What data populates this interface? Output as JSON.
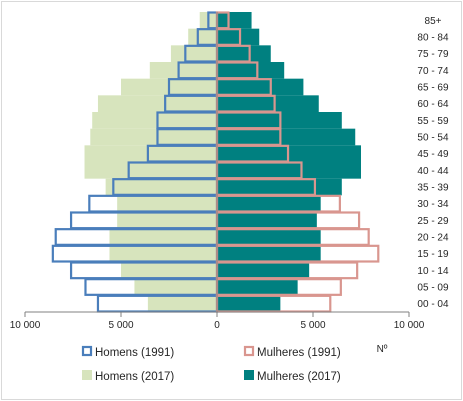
{
  "chart_data": {
    "type": "bar",
    "orientation": "horizontal",
    "title": "",
    "xlabel": "Nº",
    "ylabel": "",
    "categories": [
      "00 - 04",
      "05 - 09",
      "10 - 14",
      "15 - 19",
      "20 - 24",
      "25 - 29",
      "30 - 34",
      "35 - 39",
      "40 - 44",
      "45 - 49",
      "50 - 54",
      "55 - 59",
      "60 - 64",
      "65 - 69",
      "70 - 74",
      "75 - 79",
      "80 - 84",
      "85+"
    ],
    "xlim": [
      -10000,
      10000
    ],
    "x_ticks": [
      -10000,
      -5000,
      0,
      5000,
      10000
    ],
    "x_tick_labels": [
      "10 000",
      "5 000",
      "0",
      "5 000",
      "10 000"
    ],
    "series": [
      {
        "name": "Homens (1991)",
        "side": "left",
        "style": "outline",
        "color": "#4a7ebb",
        "values": [
          6200,
          6850,
          7600,
          8550,
          8400,
          7600,
          6650,
          5400,
          4600,
          3600,
          3100,
          3100,
          2700,
          2500,
          2000,
          1650,
          1000,
          450
        ]
      },
      {
        "name": "Mulheres (1991)",
        "side": "right",
        "style": "outline",
        "color": "#d9968f",
        "values": [
          5900,
          6450,
          7300,
          8400,
          7900,
          7400,
          6400,
          5100,
          4400,
          3700,
          3300,
          3300,
          3000,
          2800,
          2100,
          1700,
          1200,
          600
        ]
      },
      {
        "name": "Homens (2017)",
        "side": "left",
        "style": "fill",
        "color": "#d7e4bd",
        "values": [
          3600,
          4300,
          5000,
          5600,
          5600,
          5200,
          5200,
          5800,
          6900,
          6900,
          6600,
          6500,
          6200,
          5000,
          3500,
          2400,
          1500,
          900
        ]
      },
      {
        "name": "Mulheres (2017)",
        "side": "right",
        "style": "fill",
        "color": "#008080",
        "values": [
          3300,
          4200,
          4800,
          5400,
          5400,
          5200,
          5400,
          6500,
          7500,
          7500,
          7200,
          6500,
          5300,
          4500,
          3500,
          2800,
          2200,
          1800
        ]
      }
    ],
    "grid": false,
    "legend_position": "bottom"
  }
}
